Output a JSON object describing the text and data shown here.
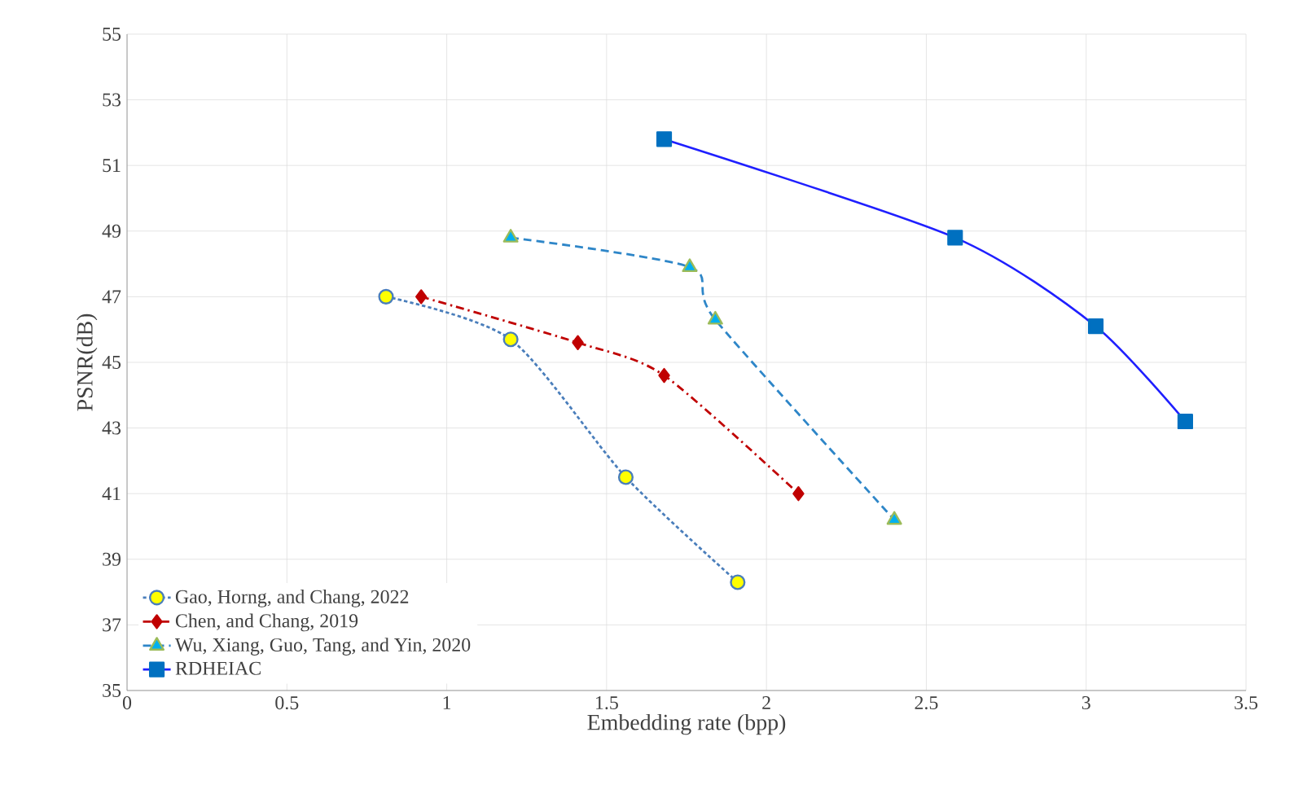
{
  "chart_data": {
    "type": "line",
    "xlabel": "Embedding rate (bpp)",
    "ylabel": "PSNR(dB)",
    "xlim": [
      0,
      3.5
    ],
    "xticks": [
      0,
      0.5,
      1,
      1.5,
      2,
      2.5,
      3,
      3.5
    ],
    "ylim": [
      35,
      55
    ],
    "yticks": [
      35,
      37,
      39,
      41,
      43,
      45,
      47,
      49,
      51,
      53,
      55
    ],
    "grid": true,
    "legend": "bottom left",
    "series": [
      {
        "name": "Gao, Horng, and Chang, 2022",
        "color": "#4a7ebb",
        "marker": "circle",
        "line_style": "dotted",
        "x": [
          0.81,
          1.2,
          1.56,
          1.91
        ],
        "values": [
          47.0,
          45.7,
          41.5,
          38.3
        ]
      },
      {
        "name": "Chen, and Chang, 2019",
        "color": "#c00000",
        "marker": "diamond",
        "line_style": "dashdot",
        "x": [
          0.92,
          1.41,
          1.68,
          2.1
        ],
        "values": [
          47.0,
          45.6,
          44.6,
          41.0
        ]
      },
      {
        "name": "Wu, Xiang, Guo, Tang, and Yin, 2020",
        "color": "#2e86c8",
        "marker": "triangle",
        "line_style": "dashed",
        "x": [
          1.2,
          1.76,
          1.84,
          2.4
        ],
        "values": [
          48.8,
          47.9,
          46.3,
          40.2
        ]
      },
      {
        "name": "RDHEIAC",
        "color": "#1f1fff",
        "marker": "square",
        "line_style": "solid",
        "x": [
          1.68,
          2.59,
          3.03,
          3.31
        ],
        "values": [
          51.8,
          48.8,
          46.1,
          43.2
        ]
      }
    ]
  }
}
